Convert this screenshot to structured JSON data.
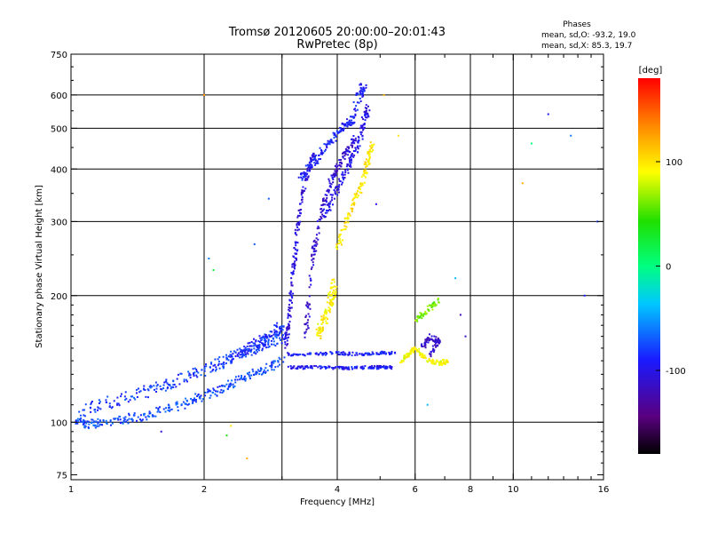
{
  "chart_data": {
    "type": "scatter",
    "title": "Tromsø 20120605 20:00:00–20:01:43",
    "subtitle": "RwPretec (8p)",
    "xlabel": "Frequency [MHz]",
    "ylabel": "Stationary phase Virtual Height [km]",
    "x_scale": "log",
    "y_scale": "log",
    "xlim": [
      1,
      16
    ],
    "ylim": [
      73,
      750
    ],
    "x_ticks": [
      1,
      2,
      4,
      6,
      8,
      10,
      16
    ],
    "x_tick_labels": [
      "1",
      "2",
      "4",
      "6",
      "8",
      "10",
      "16"
    ],
    "x_gridlines": [
      2,
      3,
      4,
      6,
      8,
      10
    ],
    "y_ticks": [
      75,
      100,
      200,
      300,
      400,
      500,
      600,
      750
    ],
    "y_tick_labels": [
      "75",
      "100",
      "200",
      "300",
      "400",
      "500",
      "600",
      "750"
    ],
    "y_gridlines": [
      100,
      200,
      300,
      400,
      500,
      600
    ],
    "grid": true,
    "colorbar": {
      "label": "[deg]",
      "range": [
        -180,
        180
      ],
      "ticks": [
        100,
        0,
        -100
      ],
      "tick_labels": [
        "100",
        "0",
        "-100"
      ]
    },
    "annotation": {
      "title": "Phases",
      "line1": "mean, sd,O: -93.2, 19.0",
      "line2": "mean, sd,X:  85.3, 19.7"
    },
    "traces": [
      {
        "name": "",
        "phase": -75,
        "pts": [
          [
            1.02,
            100
          ],
          [
            1.1,
            99
          ],
          [
            1.2,
            100
          ],
          [
            1.35,
            102
          ],
          [
            1.5,
            104
          ],
          [
            1.7,
            108
          ],
          [
            1.9,
            113
          ],
          [
            2.1,
            118
          ],
          [
            2.3,
            123
          ],
          [
            2.5,
            128
          ],
          [
            2.75,
            134
          ],
          [
            3.0,
            140
          ]
        ],
        "spread": 0.035
      },
      {
        "name": "",
        "phase": -80,
        "pts": [
          [
            1.05,
            106
          ],
          [
            1.2,
            111
          ],
          [
            1.4,
            116
          ],
          [
            1.6,
            121
          ],
          [
            1.8,
            127
          ],
          [
            2.0,
            133
          ],
          [
            2.2,
            139
          ],
          [
            2.4,
            146
          ],
          [
            2.6,
            151
          ],
          [
            2.8,
            155
          ],
          [
            3.0,
            160
          ]
        ],
        "spread": 0.045
      },
      {
        "name": "",
        "phase": -95,
        "pts": [
          [
            3.1,
            135
          ],
          [
            3.4,
            135
          ],
          [
            3.8,
            135
          ],
          [
            4.2,
            134
          ],
          [
            4.6,
            135
          ],
          [
            5.0,
            135
          ],
          [
            5.3,
            135
          ]
        ],
        "spread": 0.012
      },
      {
        "name": "",
        "phase": -90,
        "pts": [
          [
            3.1,
            145
          ],
          [
            3.5,
            145
          ],
          [
            4.0,
            146
          ],
          [
            4.5,
            145
          ],
          [
            5.0,
            146
          ],
          [
            5.4,
            146
          ]
        ],
        "spread": 0.012
      },
      {
        "name": "",
        "phase": -105,
        "pts": [
          [
            3.05,
            150
          ],
          [
            3.1,
            170
          ],
          [
            3.15,
            200
          ],
          [
            3.2,
            240
          ],
          [
            3.25,
            290
          ],
          [
            3.35,
            350
          ],
          [
            3.45,
            400
          ],
          [
            3.55,
            440
          ]
        ],
        "spread": 0.02
      },
      {
        "name": "",
        "phase": -110,
        "pts": [
          [
            3.4,
            160
          ],
          [
            3.45,
            200
          ],
          [
            3.55,
            260
          ],
          [
            3.7,
            320
          ],
          [
            3.85,
            370
          ],
          [
            4.0,
            400
          ],
          [
            4.2,
            440
          ],
          [
            4.4,
            480
          ]
        ],
        "spread": 0.022
      },
      {
        "name": "",
        "phase": -100,
        "pts": [
          [
            3.7,
            300
          ],
          [
            3.9,
            340
          ],
          [
            4.1,
            380
          ],
          [
            4.3,
            420
          ],
          [
            4.5,
            470
          ],
          [
            4.6,
            520
          ],
          [
            4.7,
            560
          ]
        ],
        "spread": 0.025
      },
      {
        "name": "",
        "phase": -90,
        "pts": [
          [
            3.3,
            380
          ],
          [
            3.5,
            410
          ],
          [
            3.7,
            440
          ],
          [
            3.9,
            470
          ],
          [
            4.1,
            500
          ],
          [
            4.3,
            520
          ],
          [
            4.5,
            600
          ],
          [
            4.6,
            640
          ]
        ],
        "spread": 0.03
      },
      {
        "name": "",
        "phase": 95,
        "pts": [
          [
            3.6,
            160
          ],
          [
            3.7,
            170
          ],
          [
            3.8,
            185
          ],
          [
            3.9,
            200
          ],
          [
            3.95,
            215
          ]
        ],
        "spread": 0.035
      },
      {
        "name": "",
        "phase": 100,
        "pts": [
          [
            4.0,
            260
          ],
          [
            4.2,
            300
          ],
          [
            4.4,
            340
          ],
          [
            4.6,
            380
          ],
          [
            4.7,
            420
          ],
          [
            4.8,
            460
          ]
        ],
        "spread": 0.025
      },
      {
        "name": "",
        "phase": 90,
        "pts": [
          [
            5.6,
            140
          ],
          [
            5.8,
            145
          ],
          [
            6.0,
            150
          ],
          [
            6.4,
            140
          ],
          [
            6.8,
            138
          ],
          [
            7.1,
            140
          ]
        ],
        "spread": 0.018
      },
      {
        "name": "",
        "phase": -115,
        "pts": [
          [
            6.2,
            150
          ],
          [
            6.5,
            160
          ],
          [
            6.8,
            155
          ],
          [
            6.5,
            145
          ]
        ],
        "spread": 0.02
      },
      {
        "name": "",
        "phase": 60,
        "pts": [
          [
            6.0,
            175
          ],
          [
            6.4,
            185
          ],
          [
            6.8,
            195
          ]
        ],
        "spread": 0.02
      },
      {
        "name": "",
        "phase": -85,
        "pts": [
          [
            2.3,
            140
          ],
          [
            2.5,
            150
          ],
          [
            2.7,
            155
          ],
          [
            2.9,
            165
          ],
          [
            3.0,
            170
          ]
        ],
        "spread": 0.04
      }
    ],
    "sparse_points": [
      [
        10.5,
        370,
        120
      ],
      [
        12,
        540,
        -95
      ],
      [
        13.5,
        480,
        -60
      ],
      [
        14.5,
        200,
        -90
      ],
      [
        15.5,
        300,
        -80
      ],
      [
        11,
        460,
        0
      ],
      [
        2.05,
        245,
        -60
      ],
      [
        2.1,
        230,
        20
      ],
      [
        2.25,
        93,
        40
      ],
      [
        2.5,
        82,
        120
      ],
      [
        1.6,
        95,
        -110
      ],
      [
        2.6,
        265,
        -70
      ],
      [
        2.8,
        340,
        -70
      ],
      [
        5.1,
        600,
        120
      ],
      [
        5.5,
        480,
        100
      ],
      [
        4.9,
        330,
        -100
      ],
      [
        7.4,
        220,
        -40
      ],
      [
        7.6,
        180,
        -120
      ],
      [
        7.8,
        160,
        -110
      ],
      [
        2.0,
        600,
        130
      ],
      [
        6.4,
        110,
        -40
      ],
      [
        2.3,
        98,
        100
      ]
    ]
  }
}
